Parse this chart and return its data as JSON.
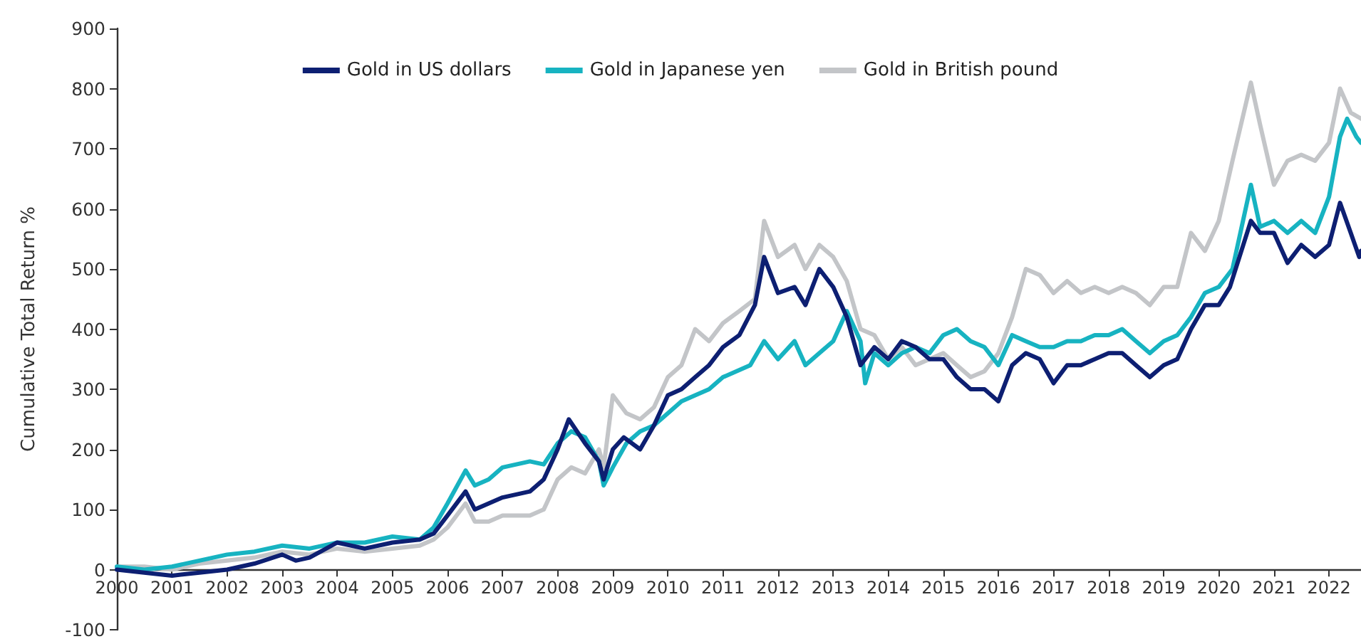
{
  "chart_data": {
    "type": "line",
    "ylabel": "Cumulative Total Return %",
    "xlim": [
      "2000-01",
      "2022-08"
    ],
    "xticks": [
      "2000",
      "2001",
      "2002",
      "2003",
      "2004",
      "2005",
      "2006",
      "2007",
      "2008",
      "2009",
      "2010",
      "2011",
      "2012",
      "2013",
      "2014",
      "2015",
      "2016",
      "2017",
      "2018",
      "2019",
      "2020",
      "2021",
      "2022"
    ],
    "ylim": [
      -100,
      900
    ],
    "yticks": [
      -100,
      0,
      100,
      200,
      300,
      400,
      500,
      600,
      700,
      800,
      900
    ],
    "grid": false,
    "legend": "top",
    "marker": "none",
    "line_style": "solid",
    "series": [
      {
        "name": "Gold in US dollars",
        "color": "#0d1f72",
        "x": [
          "2000-01",
          "2000-07",
          "2001-01",
          "2001-07",
          "2002-01",
          "2002-07",
          "2003-01",
          "2003-04",
          "2003-07",
          "2004-01",
          "2004-07",
          "2005-01",
          "2005-07",
          "2005-10",
          "2006-01",
          "2006-05",
          "2006-07",
          "2006-10",
          "2007-01",
          "2007-07",
          "2007-10",
          "2008-01",
          "2008-03-15",
          "2008-07",
          "2008-10",
          "2008-11",
          "2009-01",
          "2009-03-15",
          "2009-07",
          "2009-10",
          "2010-01",
          "2010-04",
          "2010-07",
          "2010-10",
          "2011-01",
          "2011-04-20",
          "2011-08",
          "2011-10",
          "2012-01",
          "2012-04-20",
          "2012-07",
          "2012-10",
          "2013-01",
          "2013-04",
          "2013-07",
          "2013-10",
          "2014-01",
          "2014-04",
          "2014-07",
          "2014-10",
          "2015-01",
          "2015-04",
          "2015-07",
          "2015-10",
          "2016-01",
          "2016-04",
          "2016-07",
          "2016-10",
          "2017-01",
          "2017-04",
          "2017-07",
          "2017-10",
          "2018-01",
          "2018-04",
          "2018-07",
          "2018-10",
          "2019-01",
          "2019-04",
          "2019-07",
          "2019-10",
          "2020-01",
          "2020-03-15",
          "2020-08",
          "2020-10",
          "2021-01",
          "2021-04",
          "2021-07",
          "2021-10",
          "2022-01",
          "2022-03-15",
          "2022-05-25",
          "2022-07-20",
          "2022-08"
        ],
        "values": [
          0,
          -5,
          -10,
          -5,
          0,
          10,
          25,
          15,
          20,
          45,
          35,
          45,
          50,
          60,
          90,
          130,
          100,
          110,
          120,
          130,
          150,
          200,
          250,
          210,
          180,
          150,
          200,
          220,
          200,
          240,
          290,
          300,
          320,
          340,
          370,
          390,
          440,
          520,
          460,
          470,
          440,
          500,
          470,
          420,
          340,
          370,
          350,
          380,
          370,
          350,
          350,
          320,
          300,
          300,
          280,
          340,
          360,
          350,
          310,
          340,
          340,
          350,
          360,
          360,
          340,
          320,
          340,
          350,
          400,
          440,
          440,
          470,
          580,
          560,
          560,
          510,
          540,
          520,
          540,
          610,
          560,
          520,
          530
        ]
      },
      {
        "name": "Gold in Japanese yen",
        "color": "#17b3c1",
        "x": [
          "2000-01",
          "2000-07",
          "2001-01",
          "2001-07",
          "2002-01",
          "2002-07",
          "2003-01",
          "2003-07",
          "2004-01",
          "2004-07",
          "2005-01",
          "2005-07",
          "2005-10",
          "2006-01",
          "2006-05",
          "2006-07",
          "2006-10",
          "2007-01",
          "2007-07",
          "2007-10",
          "2008-01",
          "2008-04",
          "2008-07",
          "2008-10",
          "2008-11",
          "2009-01",
          "2009-04",
          "2009-07",
          "2009-10",
          "2010-01",
          "2010-04",
          "2010-07",
          "2010-10",
          "2011-01",
          "2011-07",
          "2011-10",
          "2012-01",
          "2012-04-20",
          "2012-07",
          "2012-10",
          "2013-01",
          "2013-04",
          "2013-07",
          "2013-08",
          "2013-10",
          "2014-01",
          "2014-04",
          "2014-07",
          "2014-10",
          "2015-01",
          "2015-04",
          "2015-07",
          "2015-10",
          "2016-01",
          "2016-04",
          "2016-07",
          "2016-10",
          "2017-01",
          "2017-04",
          "2017-07",
          "2017-10",
          "2018-01",
          "2018-04",
          "2018-07",
          "2018-10",
          "2019-01",
          "2019-04",
          "2019-07",
          "2019-10",
          "2020-01",
          "2020-04",
          "2020-08",
          "2020-10",
          "2021-01",
          "2021-04",
          "2021-07",
          "2021-10",
          "2022-01",
          "2022-03-15",
          "2022-05",
          "2022-07",
          "2022-08"
        ],
        "values": [
          5,
          0,
          5,
          15,
          25,
          30,
          40,
          35,
          45,
          45,
          55,
          50,
          70,
          110,
          165,
          140,
          150,
          170,
          180,
          175,
          210,
          230,
          220,
          180,
          140,
          170,
          210,
          230,
          240,
          260,
          280,
          290,
          300,
          320,
          340,
          380,
          350,
          380,
          340,
          360,
          380,
          430,
          380,
          310,
          360,
          340,
          360,
          370,
          360,
          390,
          400,
          380,
          370,
          340,
          390,
          380,
          370,
          370,
          380,
          380,
          390,
          390,
          400,
          380,
          360,
          380,
          390,
          420,
          460,
          470,
          500,
          640,
          570,
          580,
          560,
          580,
          560,
          620,
          720,
          750,
          720,
          710
        ]
      },
      {
        "name": "Gold in British pound",
        "color": "#c3c5c8",
        "x": [
          "2000-01",
          "2000-07",
          "2001-01",
          "2001-07",
          "2002-01",
          "2002-07",
          "2003-01",
          "2003-07",
          "2004-01",
          "2004-07",
          "2005-01",
          "2005-07",
          "2005-10",
          "2006-01",
          "2006-05",
          "2006-07",
          "2006-10",
          "2007-01",
          "2007-07",
          "2007-10",
          "2008-01",
          "2008-04",
          "2008-07",
          "2008-10",
          "2008-11",
          "2009-01",
          "2009-04",
          "2009-07",
          "2009-10",
          "2010-01",
          "2010-04",
          "2010-07",
          "2010-10",
          "2011-01",
          "2011-04-20",
          "2011-08",
          "2011-10",
          "2012-01",
          "2012-04-20",
          "2012-07",
          "2012-10",
          "2013-01",
          "2013-04",
          "2013-07",
          "2013-10",
          "2014-01",
          "2014-04",
          "2014-07",
          "2014-10",
          "2015-01",
          "2015-04",
          "2015-07",
          "2015-10",
          "2016-01",
          "2016-04",
          "2016-07",
          "2016-10",
          "2017-01",
          "2017-04",
          "2017-07",
          "2017-10",
          "2018-01",
          "2018-04",
          "2018-07",
          "2018-10",
          "2019-01",
          "2019-04",
          "2019-07",
          "2019-10",
          "2020-01",
          "2020-04",
          "2020-08",
          "2020-10",
          "2021-01",
          "2021-04",
          "2021-07",
          "2021-10",
          "2022-01",
          "2022-03-15",
          "2022-05-25",
          "2022-08"
        ],
        "values": [
          5,
          5,
          0,
          10,
          15,
          20,
          30,
          25,
          35,
          30,
          35,
          40,
          50,
          70,
          110,
          80,
          80,
          90,
          90,
          100,
          150,
          170,
          160,
          200,
          170,
          290,
          260,
          250,
          270,
          320,
          340,
          400,
          380,
          410,
          430,
          450,
          580,
          520,
          540,
          500,
          540,
          520,
          480,
          400,
          390,
          350,
          370,
          340,
          350,
          360,
          340,
          320,
          330,
          360,
          420,
          500,
          490,
          460,
          480,
          460,
          470,
          460,
          470,
          460,
          440,
          470,
          470,
          560,
          530,
          580,
          680,
          810,
          740,
          640,
          680,
          690,
          680,
          710,
          800,
          760,
          750
        ]
      }
    ]
  }
}
